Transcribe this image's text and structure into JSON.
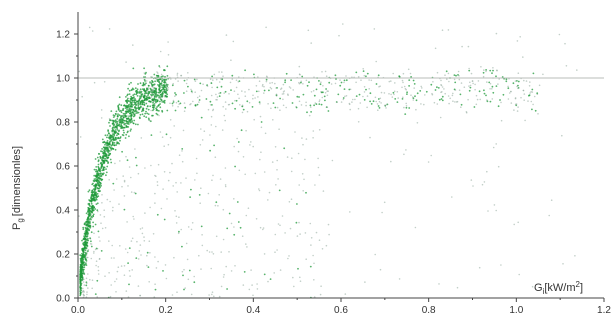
{
  "chart_data": {
    "type": "scatter",
    "xlabel_main": "G",
    "xlabel_sub": "i",
    "xlabel_unit": "[kW/m",
    "xlabel_sup": "2",
    "xlabel_close": "]",
    "ylabel_main": "P",
    "ylabel_sub": "g",
    "ylabel_unit": "[dimensionles]",
    "xlim": [
      0.0,
      1.2
    ],
    "ylim": [
      0.0,
      1.3
    ],
    "x_ticks": [
      "0.0",
      "0.2",
      "0.4",
      "0.6",
      "0.8",
      "1.0",
      "1.2"
    ],
    "y_ticks": [
      "0.0",
      "0.2",
      "0.4",
      "0.6",
      "0.8",
      "1.0",
      "1.2"
    ],
    "reference_line_y": 1.0,
    "point_count": 2600,
    "colors": {
      "dense_points": "#1f9a3a",
      "sparse_points": "#8fa89a",
      "reference_line": "#b8bcb8",
      "axis": "#444444"
    }
  }
}
